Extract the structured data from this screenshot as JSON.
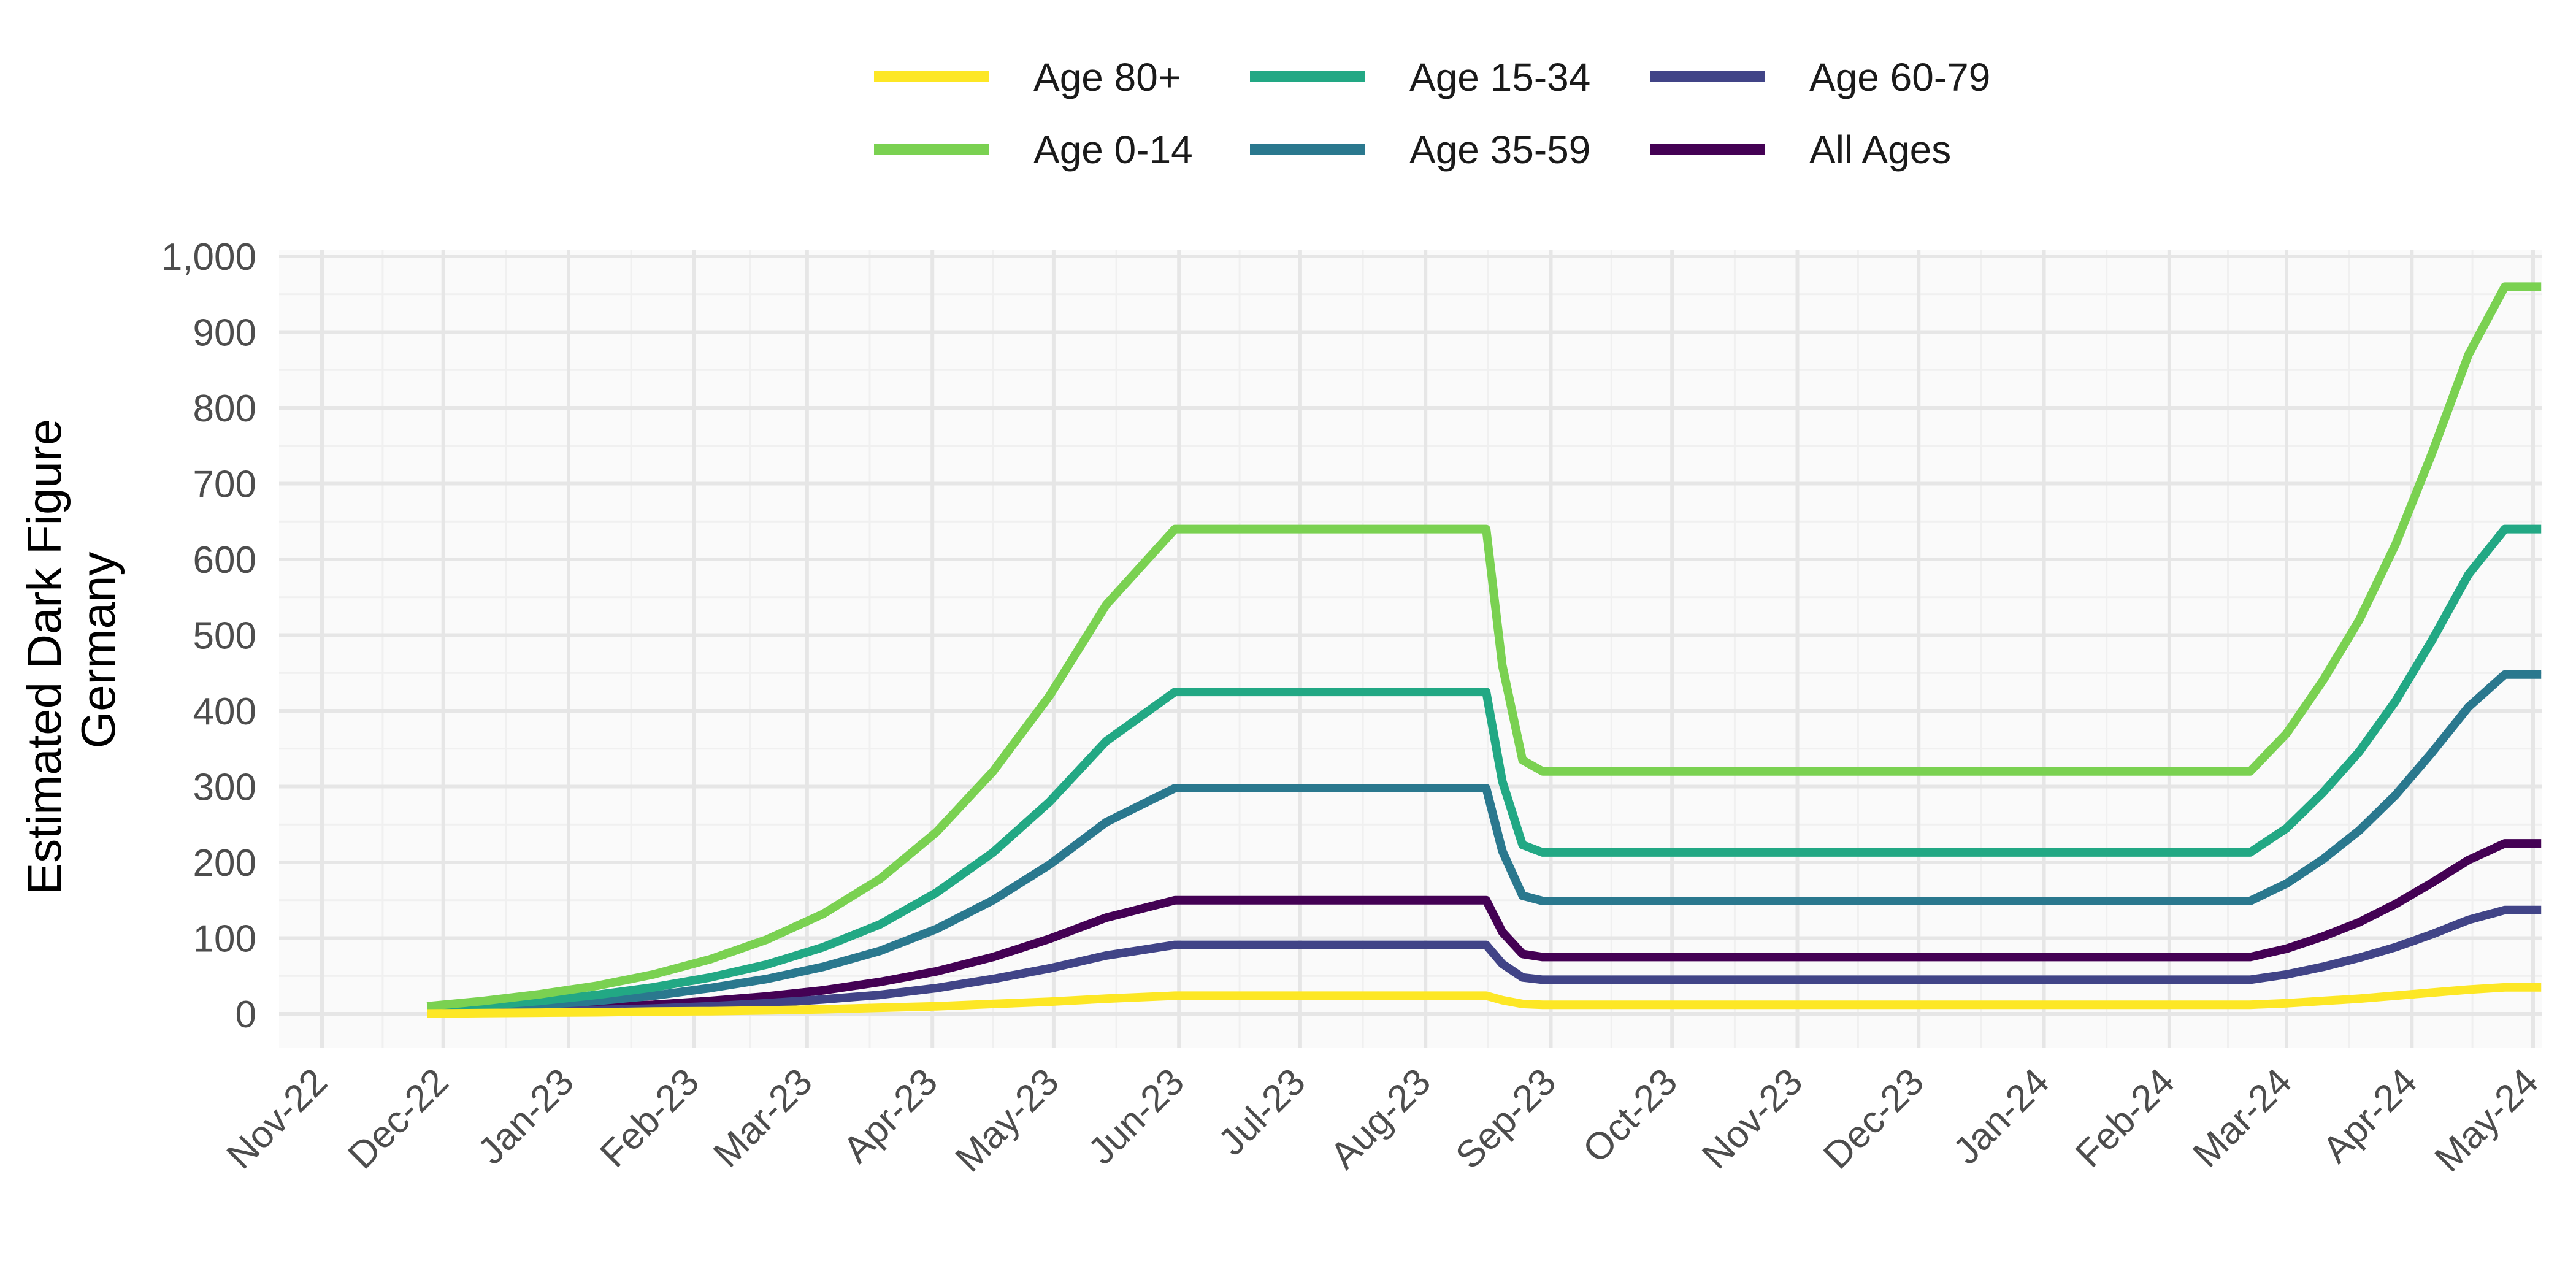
{
  "chart_data": {
    "type": "line",
    "title": "",
    "xlabel": "",
    "ylabel_lines": [
      "Estimated Dark Figure",
      "Germany"
    ],
    "ylim": [
      0,
      1000
    ],
    "y_ticks": [
      0,
      100,
      200,
      300,
      400,
      500,
      600,
      700,
      800,
      900,
      1000
    ],
    "y_tick_labels": [
      "0",
      "100",
      "200",
      "300",
      "400",
      "500",
      "600",
      "700",
      "800",
      "900",
      "1,000"
    ],
    "x_range": [
      "2022-11-01",
      "2024-05-01"
    ],
    "x_ticks": [
      "2022-11-01",
      "2022-12-01",
      "2023-01-01",
      "2023-02-01",
      "2023-03-01",
      "2023-04-01",
      "2023-05-01",
      "2023-06-01",
      "2023-07-01",
      "2023-08-01",
      "2023-09-01",
      "2023-10-01",
      "2023-11-01",
      "2023-12-01",
      "2024-01-01",
      "2024-02-01",
      "2024-03-01",
      "2024-04-01",
      "2024-05-01"
    ],
    "x_tick_labels": [
      "Nov-22",
      "Dec-22",
      "Jan-23",
      "Feb-23",
      "Mar-23",
      "Apr-23",
      "May-23",
      "Jun-23",
      "Jul-23",
      "Aug-23",
      "Sep-23",
      "Oct-23",
      "Nov-23",
      "Dec-23",
      "Jan-24",
      "Feb-24",
      "Mar-24",
      "Apr-24",
      "May-24"
    ],
    "grid": true,
    "legend_position": "top",
    "legend_order": [
      "Age 80+",
      "Age 15-34",
      "Age 60-79",
      "Age 0-14",
      "Age 35-59",
      "All Ages"
    ],
    "x": [
      "2022-11-27",
      "2022-12-11",
      "2022-12-25",
      "2023-01-08",
      "2023-01-22",
      "2023-02-05",
      "2023-02-19",
      "2023-03-05",
      "2023-03-19",
      "2023-04-02",
      "2023-04-16",
      "2023-04-30",
      "2023-05-14",
      "2023-05-31",
      "2023-08-16",
      "2023-08-20",
      "2023-08-25",
      "2023-08-30",
      "2023-09-04",
      "2023-09-15",
      "2024-02-21",
      "2024-03-01",
      "2024-03-10",
      "2024-03-19",
      "2024-03-28",
      "2024-04-06",
      "2024-04-15",
      "2024-04-24",
      "2024-05-03"
    ],
    "series": [
      {
        "name": "Age 80+",
        "color": "#FDE725",
        "values": [
          0.5,
          1,
          1.5,
          2,
          3,
          3.5,
          4.5,
          6,
          8,
          10,
          13,
          16,
          20,
          24,
          24,
          18,
          13,
          12,
          12,
          12,
          12,
          14,
          17,
          20,
          24,
          28,
          32,
          35,
          35
        ]
      },
      {
        "name": "Age 0-14",
        "color": "#7AD151",
        "values": [
          10,
          17,
          26,
          37,
          52,
          72,
          98,
          132,
          178,
          240,
          320,
          420,
          540,
          640,
          640,
          460,
          335,
          320,
          320,
          320,
          320,
          370,
          440,
          520,
          620,
          740,
          870,
          960,
          960
        ]
      },
      {
        "name": "Age 15-34",
        "color": "#22A884",
        "values": [
          7,
          11,
          17,
          25,
          35,
          48,
          65,
          88,
          118,
          160,
          213,
          280,
          360,
          425,
          425,
          307,
          223,
          213,
          213,
          213,
          213,
          245,
          292,
          346,
          413,
          493,
          580,
          640,
          640
        ]
      },
      {
        "name": "Age 35-59",
        "color": "#2A788E",
        "values": [
          5,
          8,
          12,
          17,
          24,
          34,
          46,
          62,
          83,
          112,
          150,
          197,
          253,
          298,
          298,
          215,
          156,
          149,
          149,
          149,
          149,
          172,
          204,
          242,
          289,
          345,
          405,
          448,
          448
        ]
      },
      {
        "name": "Age 60-79",
        "color": "#414487",
        "values": [
          1.5,
          2.5,
          3.5,
          5,
          7,
          10,
          14,
          19,
          25,
          34,
          46,
          60,
          77,
          91,
          91,
          66,
          48,
          45,
          45,
          45,
          45,
          52,
          62,
          74,
          88,
          105,
          124,
          137,
          137
        ]
      },
      {
        "name": "All Ages",
        "color": "#440154",
        "values": [
          2.5,
          4,
          6,
          9,
          12,
          17,
          23,
          31,
          42,
          56,
          75,
          99,
          127,
          150,
          150,
          108,
          79,
          75,
          75,
          75,
          75,
          86,
          102,
          121,
          145,
          173,
          203,
          225,
          225
        ]
      }
    ]
  }
}
